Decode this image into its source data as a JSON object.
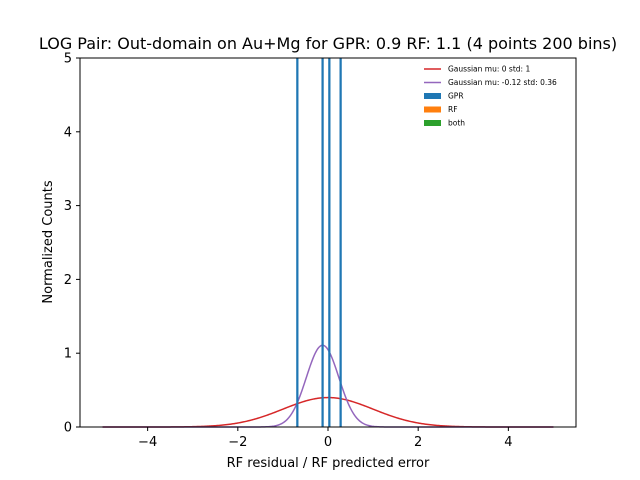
{
  "chart_data": {
    "type": "histogram",
    "title": "LOG Pair: Out-domain on Au+Mg for GPR: 0.9 RF: 1.1 (4 points 200 bins)",
    "xlabel": "RF residual / RF predicted error",
    "ylabel": "Normalized Counts",
    "xlim": [
      -5.5,
      5.5
    ],
    "ylim": [
      0,
      5
    ],
    "xticks": [
      -4,
      -2,
      0,
      2,
      4
    ],
    "xtick_labels": [
      "−4",
      "−2",
      "0",
      "2",
      "4"
    ],
    "yticks": [
      0,
      1,
      2,
      3,
      4,
      5
    ],
    "ytick_labels": [
      "0",
      "1",
      "2",
      "3",
      "4",
      "5"
    ],
    "grid": false,
    "legend_position": "upper right",
    "curves": [
      {
        "name": "Gaussian mu: 0 std: 1",
        "mu": 0,
        "sigma": 1,
        "x_range": [
          -5,
          5
        ],
        "color": "#d62728"
      },
      {
        "name": "Gaussian mu: -0.12 std: 0.36",
        "mu": -0.12,
        "sigma": 0.36,
        "x_range": [
          -5,
          5
        ],
        "color": "#9467bd"
      }
    ],
    "series": [
      {
        "name": "GPR",
        "color": "#1f77b4",
        "bars": [
          {
            "x": -0.68,
            "height": 5
          },
          {
            "x": -0.12,
            "height": 5
          },
          {
            "x": 0.03,
            "height": 5
          },
          {
            "x": 0.28,
            "height": 5
          }
        ]
      },
      {
        "name": "RF",
        "color": "#ff7f0e",
        "bars": []
      },
      {
        "name": "both",
        "color": "#2ca02c",
        "bars": []
      }
    ]
  }
}
